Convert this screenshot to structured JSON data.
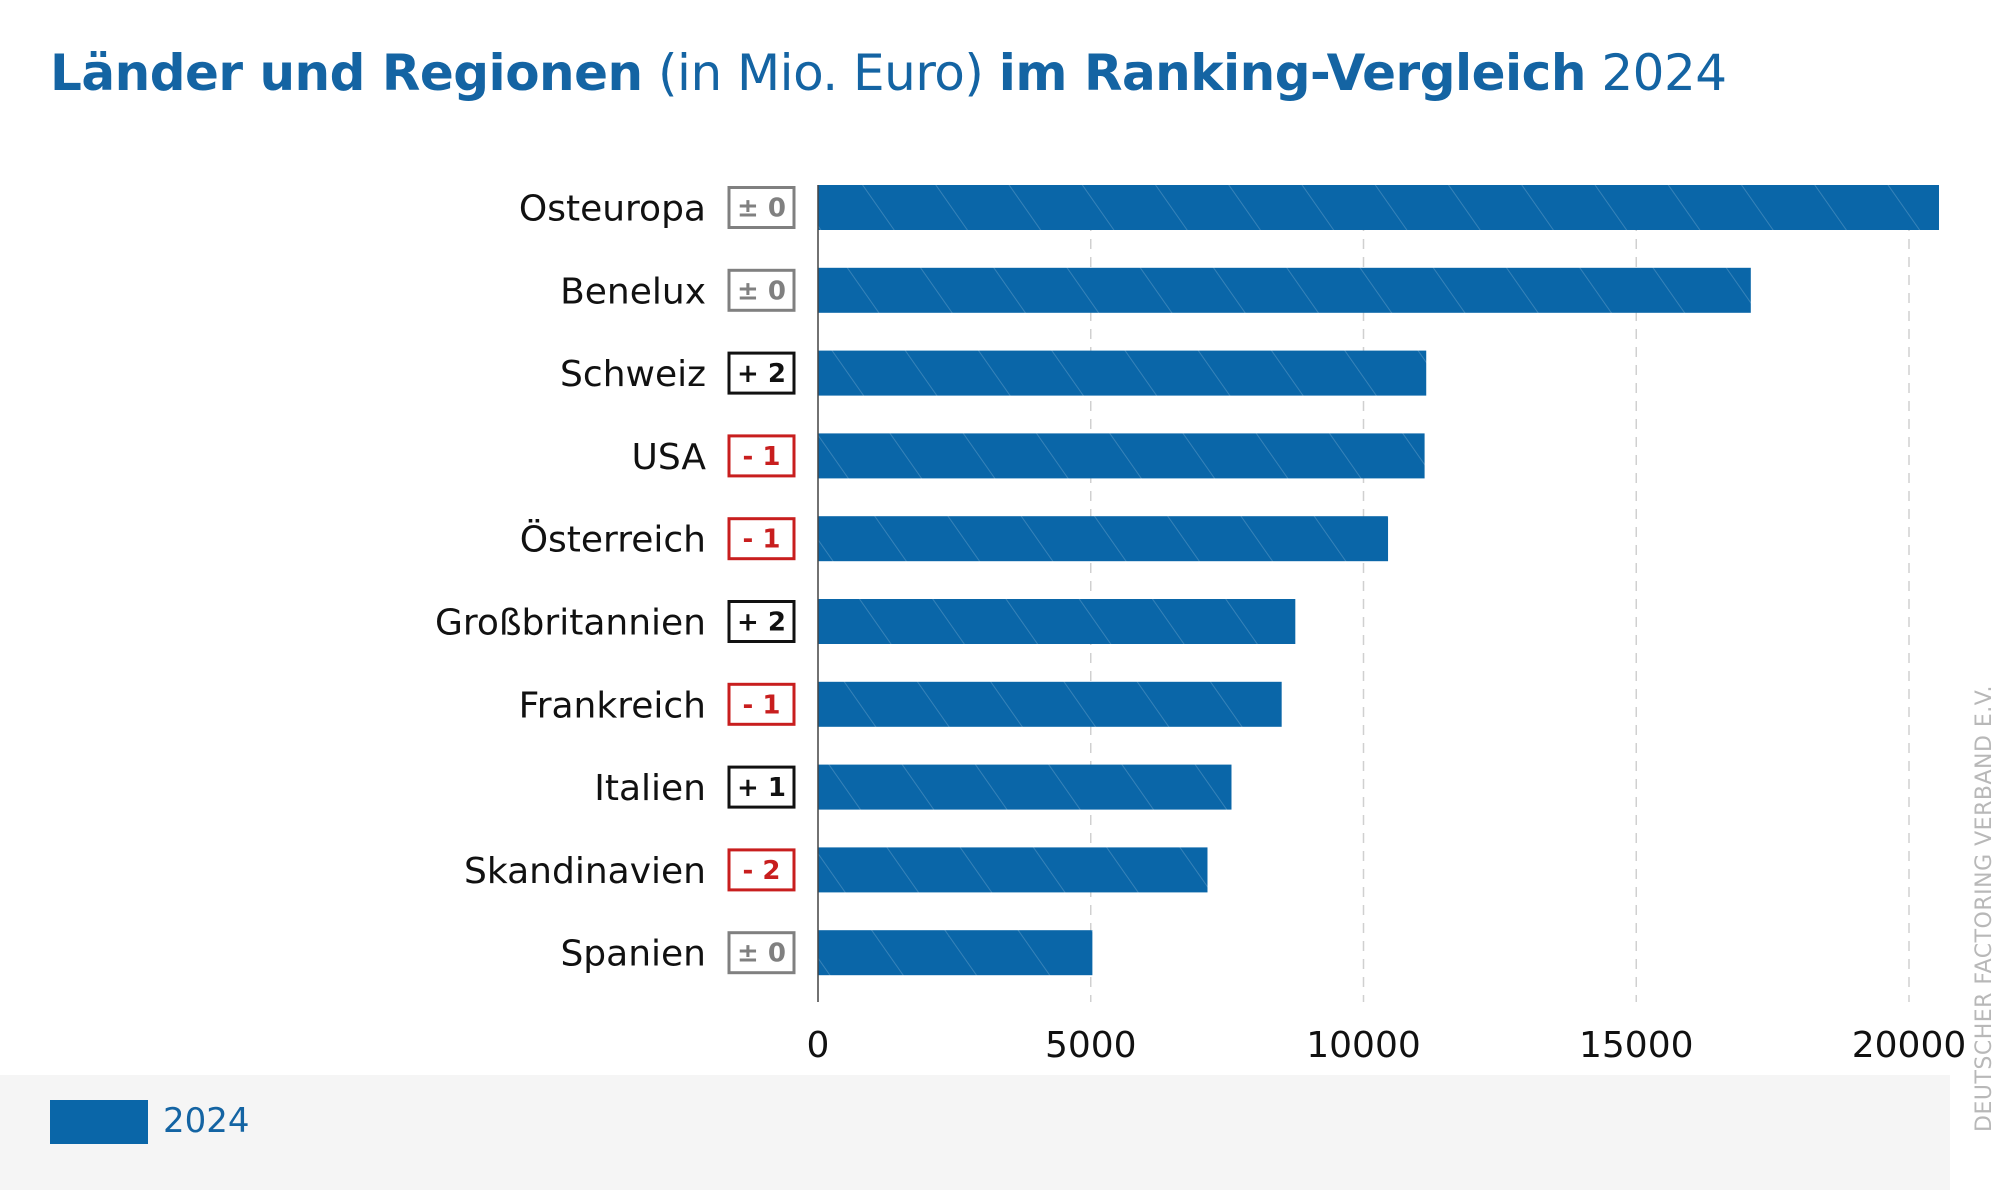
{
  "title": {
    "part1": "Länder und Regionen",
    "part2": " (in Mio. Euro) ",
    "part3": "im Ranking-Vergleich",
    "part4": " 2024"
  },
  "legend": {
    "label": "2024",
    "color": "#0a66a8"
  },
  "watermark": "DEUTSCHER FACTORING VERBAND E.V.",
  "colors": {
    "bar": "#0a66a8",
    "badge_neutral": "#808080",
    "badge_up": "#111111",
    "badge_down": "#c81e1e",
    "grid": "#d0d0d0"
  },
  "chart_data": {
    "type": "bar",
    "orientation": "horizontal",
    "categories": [
      "Osteuropa",
      "Benelux",
      "Schweiz",
      "USA",
      "Österreich",
      "Großbritannien",
      "Frankreich",
      "Italien",
      "Skandinavien",
      "Spanien"
    ],
    "series": [
      {
        "name": "2024",
        "values": [
          20550,
          17100,
          11150,
          11120,
          10450,
          8750,
          8500,
          7580,
          7140,
          5030
        ]
      }
    ],
    "rank_changes": [
      "± 0",
      "± 0",
      "+ 2",
      "- 1",
      "- 1",
      "+ 2",
      "- 1",
      "+ 1",
      "- 2",
      "± 0"
    ],
    "rank_change_kind": [
      "neutral",
      "neutral",
      "up",
      "down",
      "down",
      "up",
      "down",
      "up",
      "down",
      "neutral"
    ],
    "xlim": [
      0,
      20000
    ],
    "xticks": [
      0,
      5000,
      10000,
      15000,
      20000
    ],
    "grid": "vertical-dashed",
    "legend_position": "bottom-left"
  }
}
